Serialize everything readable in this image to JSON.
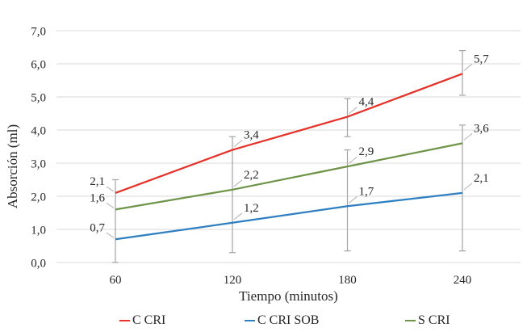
{
  "chart_data": {
    "type": "line",
    "title": "",
    "xlabel": "Tiempo (minutos)",
    "ylabel": "Absorción (ml)",
    "x": [
      60,
      120,
      180,
      240
    ],
    "x_tick_labels": [
      "60",
      "120",
      "180",
      "240"
    ],
    "y_ticks": [
      0,
      1,
      2,
      3,
      4,
      5,
      6,
      7
    ],
    "y_tick_labels": [
      "0,0",
      "1,0",
      "2,0",
      "3,0",
      "4,0",
      "5,0",
      "6,0",
      "7,0"
    ],
    "ylim": [
      0,
      7
    ],
    "grid": true,
    "legend_position": "bottom-center",
    "series": [
      {
        "name": "C CRI",
        "color": "#e63329",
        "values": [
          2.1,
          3.4,
          4.4,
          5.7
        ],
        "point_labels": [
          "2,1",
          "3,4",
          "4,4",
          "5,7"
        ]
      },
      {
        "name": "C CRI SOB",
        "color": "#2e7fc2",
        "values": [
          0.7,
          1.2,
          1.7,
          2.1
        ],
        "point_labels": [
          "0,7",
          "1,2",
          "1,7",
          "2,1"
        ]
      },
      {
        "name": "S CRI",
        "color": "#6f9449",
        "values": [
          1.6,
          2.2,
          2.9,
          3.6
        ],
        "point_labels": [
          "1,6",
          "2,2",
          "2,9",
          "3,6"
        ]
      }
    ],
    "error_bars": [
      {
        "x": 60,
        "segments": [
          [
            0.0,
            2.5
          ]
        ]
      },
      {
        "x": 120,
        "segments": [
          [
            0.3,
            3.8
          ]
        ]
      },
      {
        "x": 180,
        "segments": [
          [
            0.35,
            3.4
          ],
          [
            3.8,
            4.95
          ]
        ]
      },
      {
        "x": 240,
        "segments": [
          [
            0.35,
            4.15
          ],
          [
            5.05,
            6.4
          ]
        ]
      }
    ],
    "colors": {
      "grid": "#d9d9d9",
      "error_bar": "#a3a3a3",
      "leader_line": "#b3b3b3",
      "text": "#262626"
    }
  }
}
